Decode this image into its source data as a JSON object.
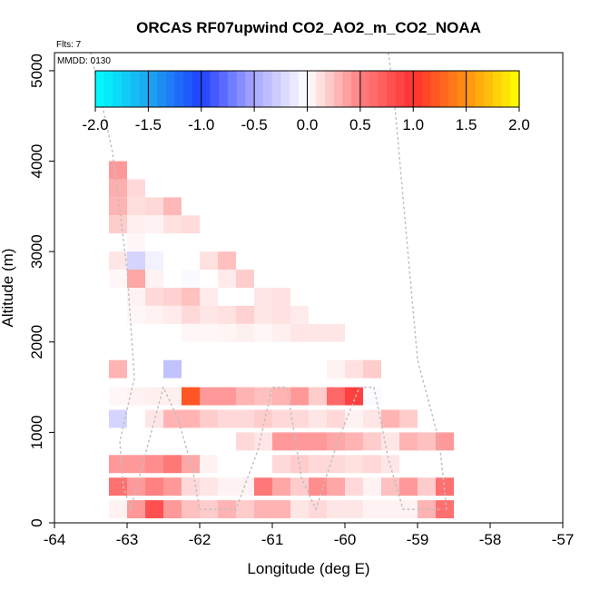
{
  "chart_data": {
    "type": "heatmap",
    "title": "ORCAS RF07upwind CO2_AO2_m_CO2_NOAA",
    "xlabel": "Longitude (deg E)",
    "ylabel": "Altitude (m)",
    "xlim": [
      -64,
      -57
    ],
    "ylim": [
      0,
      5200
    ],
    "xticks": [
      -64,
      -63,
      -62,
      -61,
      -60,
      -59,
      -58,
      -57
    ],
    "xtick_labels": [
      "-64",
      "-63",
      "-62",
      "-61",
      "-60",
      "-59",
      "-58",
      "-57"
    ],
    "yticks": [
      0,
      1000,
      2000,
      3000,
      4000,
      5000
    ],
    "ytick_labels": [
      "0",
      "1000",
      "2000",
      "3000",
      "4000",
      "5000"
    ],
    "annotations": {
      "flights": "Flts: 7",
      "mmdd": "MMDD: 0130"
    },
    "colorbar": {
      "range": [
        -2.0,
        2.0
      ],
      "ticks": [
        -2.0,
        -1.5,
        -1.0,
        -0.5,
        0.0,
        0.5,
        1.0,
        1.5,
        2.0
      ],
      "tick_labels": [
        "-2.0",
        "-1.5",
        "-1.0",
        "-0.5",
        "0.0",
        "0.5",
        "1.0",
        "1.5",
        "2.0"
      ],
      "color_stops": [
        {
          "v": -2.0,
          "c": "#00ffff"
        },
        {
          "v": -1.5,
          "c": "#1ca6f0"
        },
        {
          "v": -1.0,
          "c": "#2040ff"
        },
        {
          "v": -0.5,
          "c": "#a8a8ff"
        },
        {
          "v": 0.0,
          "c": "#ffffff"
        },
        {
          "v": 0.5,
          "c": "#ff8080"
        },
        {
          "v": 1.0,
          "c": "#ff3030"
        },
        {
          "v": 1.5,
          "c": "#ff9010"
        },
        {
          "v": 2.0,
          "c": "#ffff00"
        }
      ]
    },
    "bin_size": {
      "lon": 0.25,
      "alt": 200
    },
    "cells": [
      {
        "lon": -63.125,
        "alt": 3900,
        "v": 0.4
      },
      {
        "lon": -63.125,
        "alt": 3700,
        "v": 0.32
      },
      {
        "lon": -62.875,
        "alt": 3700,
        "v": 0.15
      },
      {
        "lon": -63.125,
        "alt": 3500,
        "v": 0.3
      },
      {
        "lon": -62.875,
        "alt": 3500,
        "v": 0.13
      },
      {
        "lon": -62.625,
        "alt": 3500,
        "v": 0.15
      },
      {
        "lon": -62.375,
        "alt": 3500,
        "v": 0.28
      },
      {
        "lon": -63.125,
        "alt": 3300,
        "v": 0.2
      },
      {
        "lon": -62.875,
        "alt": 3300,
        "v": 0.06
      },
      {
        "lon": -62.625,
        "alt": 3300,
        "v": 0.05
      },
      {
        "lon": -62.375,
        "alt": 3300,
        "v": 0.12
      },
      {
        "lon": -62.125,
        "alt": 3300,
        "v": 0.14
      },
      {
        "lon": -63.125,
        "alt": 3100,
        "v": 0.0
      },
      {
        "lon": -62.875,
        "alt": 3100,
        "v": 0.03
      },
      {
        "lon": -62.625,
        "alt": 3100,
        "v": 0.0
      },
      {
        "lon": -62.375,
        "alt": 3100,
        "v": 0.0
      },
      {
        "lon": -62.125,
        "alt": 3100,
        "v": 0.0
      },
      {
        "lon": -61.875,
        "alt": 3100,
        "v": 0.0
      },
      {
        "lon": -63.125,
        "alt": 2900,
        "v": 0.1
      },
      {
        "lon": -62.875,
        "alt": 2900,
        "v": -0.25
      },
      {
        "lon": -62.625,
        "alt": 2900,
        "v": -0.08
      },
      {
        "lon": -62.375,
        "alt": 2900,
        "v": 0.0
      },
      {
        "lon": -62.125,
        "alt": 2900,
        "v": 0.0
      },
      {
        "lon": -61.875,
        "alt": 2900,
        "v": 0.12
      },
      {
        "lon": -61.625,
        "alt": 2900,
        "v": 0.25
      },
      {
        "lon": -63.125,
        "alt": 2700,
        "v": 0.03
      },
      {
        "lon": -62.875,
        "alt": 2700,
        "v": 0.35
      },
      {
        "lon": -62.625,
        "alt": 2700,
        "v": 0.05
      },
      {
        "lon": -62.375,
        "alt": 2700,
        "v": 0.0
      },
      {
        "lon": -62.125,
        "alt": 2700,
        "v": -0.03
      },
      {
        "lon": -61.875,
        "alt": 2700,
        "v": 0.0
      },
      {
        "lon": -61.625,
        "alt": 2700,
        "v": 0.08
      },
      {
        "lon": -61.375,
        "alt": 2700,
        "v": 0.2
      },
      {
        "lon": -62.875,
        "alt": 2500,
        "v": 0.05
      },
      {
        "lon": -62.625,
        "alt": 2500,
        "v": 0.15
      },
      {
        "lon": -62.375,
        "alt": 2500,
        "v": 0.18
      },
      {
        "lon": -62.125,
        "alt": 2500,
        "v": 0.25
      },
      {
        "lon": -61.875,
        "alt": 2500,
        "v": 0.08
      },
      {
        "lon": -61.625,
        "alt": 2500,
        "v": 0.0
      },
      {
        "lon": -61.375,
        "alt": 2500,
        "v": 0.0
      },
      {
        "lon": -61.125,
        "alt": 2500,
        "v": 0.1
      },
      {
        "lon": -60.875,
        "alt": 2500,
        "v": 0.12
      },
      {
        "lon": -62.875,
        "alt": 2300,
        "v": 0.03
      },
      {
        "lon": -62.625,
        "alt": 2300,
        "v": 0.05
      },
      {
        "lon": -62.375,
        "alt": 2300,
        "v": 0.08
      },
      {
        "lon": -62.125,
        "alt": 2300,
        "v": 0.15
      },
      {
        "lon": -61.875,
        "alt": 2300,
        "v": 0.1
      },
      {
        "lon": -61.625,
        "alt": 2300,
        "v": 0.12
      },
      {
        "lon": -61.375,
        "alt": 2300,
        "v": 0.18
      },
      {
        "lon": -61.125,
        "alt": 2300,
        "v": 0.1
      },
      {
        "lon": -60.875,
        "alt": 2300,
        "v": 0.12
      },
      {
        "lon": -60.625,
        "alt": 2300,
        "v": 0.08
      },
      {
        "lon": -62.125,
        "alt": 2100,
        "v": 0.03
      },
      {
        "lon": -61.875,
        "alt": 2100,
        "v": 0.03
      },
      {
        "lon": -61.625,
        "alt": 2100,
        "v": 0.04
      },
      {
        "lon": -61.375,
        "alt": 2100,
        "v": 0.06
      },
      {
        "lon": -61.125,
        "alt": 2100,
        "v": 0.03
      },
      {
        "lon": -60.875,
        "alt": 2100,
        "v": 0.06
      },
      {
        "lon": -60.625,
        "alt": 2100,
        "v": 0.1
      },
      {
        "lon": -60.375,
        "alt": 2100,
        "v": 0.1
      },
      {
        "lon": -60.125,
        "alt": 2100,
        "v": 0.1
      },
      {
        "lon": -63.125,
        "alt": 1700,
        "v": 0.3
      },
      {
        "lon": -62.875,
        "alt": 1700,
        "v": 0.0
      },
      {
        "lon": -62.625,
        "alt": 1700,
        "v": 0.0
      },
      {
        "lon": -62.375,
        "alt": 1700,
        "v": -0.35
      },
      {
        "lon": -62.125,
        "alt": 1700,
        "v": 0.0
      },
      {
        "lon": -61.875,
        "alt": 1700,
        "v": 0.0
      },
      {
        "lon": -61.625,
        "alt": 1700,
        "v": 0.0
      },
      {
        "lon": -61.375,
        "alt": 1700,
        "v": 0.0
      },
      {
        "lon": -61.125,
        "alt": 1700,
        "v": 0.0
      },
      {
        "lon": -60.875,
        "alt": 1700,
        "v": 0.0
      },
      {
        "lon": -60.625,
        "alt": 1700,
        "v": 0.0
      },
      {
        "lon": -60.375,
        "alt": 1700,
        "v": 0.0
      },
      {
        "lon": -60.125,
        "alt": 1700,
        "v": 0.05
      },
      {
        "lon": -59.875,
        "alt": 1700,
        "v": 0.12
      },
      {
        "lon": -59.625,
        "alt": 1700,
        "v": 0.2
      },
      {
        "lon": -63.125,
        "alt": 1400,
        "v": 0.03
      },
      {
        "lon": -62.875,
        "alt": 1400,
        "v": 0.05
      },
      {
        "lon": -62.625,
        "alt": 1400,
        "v": 0.06
      },
      {
        "lon": -62.375,
        "alt": 1400,
        "v": 0.06
      },
      {
        "lon": -62.125,
        "alt": 1400,
        "v": 1.2
      },
      {
        "lon": -61.875,
        "alt": 1400,
        "v": 0.4
      },
      {
        "lon": -61.625,
        "alt": 1400,
        "v": 0.4
      },
      {
        "lon": -61.375,
        "alt": 1400,
        "v": 0.3
      },
      {
        "lon": -61.125,
        "alt": 1400,
        "v": 0.25
      },
      {
        "lon": -60.875,
        "alt": 1400,
        "v": 0.3
      },
      {
        "lon": -60.625,
        "alt": 1400,
        "v": 0.4
      },
      {
        "lon": -60.375,
        "alt": 1400,
        "v": 0.2
      },
      {
        "lon": -60.125,
        "alt": 1400,
        "v": 0.65
      },
      {
        "lon": -59.875,
        "alt": 1400,
        "v": 0.9
      },
      {
        "lon": -59.625,
        "alt": 1400,
        "v": -0.03
      },
      {
        "lon": -63.125,
        "alt": 1150,
        "v": -0.25
      },
      {
        "lon": -62.875,
        "alt": 1150,
        "v": 0.0
      },
      {
        "lon": -62.625,
        "alt": 1150,
        "v": 0.1
      },
      {
        "lon": -62.375,
        "alt": 1150,
        "v": 0.3
      },
      {
        "lon": -62.125,
        "alt": 1150,
        "v": 0.3
      },
      {
        "lon": -61.875,
        "alt": 1150,
        "v": 0.2
      },
      {
        "lon": -61.625,
        "alt": 1150,
        "v": 0.15
      },
      {
        "lon": -61.375,
        "alt": 1150,
        "v": 0.15
      },
      {
        "lon": -61.125,
        "alt": 1150,
        "v": 0.2
      },
      {
        "lon": -60.875,
        "alt": 1150,
        "v": 0.15
      },
      {
        "lon": -60.625,
        "alt": 1150,
        "v": 0.15
      },
      {
        "lon": -60.375,
        "alt": 1150,
        "v": 0.1
      },
      {
        "lon": -60.125,
        "alt": 1150,
        "v": 0.15
      },
      {
        "lon": -59.875,
        "alt": 1150,
        "v": 0.05
      },
      {
        "lon": -59.625,
        "alt": 1150,
        "v": 0.1
      },
      {
        "lon": -59.375,
        "alt": 1150,
        "v": 0.3
      },
      {
        "lon": -59.125,
        "alt": 1150,
        "v": 0.2
      },
      {
        "lon": -61.375,
        "alt": 900,
        "v": 0.15
      },
      {
        "lon": -61.125,
        "alt": 900,
        "v": 0.1
      },
      {
        "lon": -60.875,
        "alt": 900,
        "v": 0.4
      },
      {
        "lon": -60.625,
        "alt": 900,
        "v": 0.4
      },
      {
        "lon": -60.375,
        "alt": 900,
        "v": 0.4
      },
      {
        "lon": -60.125,
        "alt": 900,
        "v": 0.35
      },
      {
        "lon": -59.875,
        "alt": 900,
        "v": 0.3
      },
      {
        "lon": -59.625,
        "alt": 900,
        "v": 0.2
      },
      {
        "lon": -59.375,
        "alt": 900,
        "v": 0.1
      },
      {
        "lon": -59.125,
        "alt": 900,
        "v": 0.3
      },
      {
        "lon": -58.875,
        "alt": 900,
        "v": 0.25
      },
      {
        "lon": -58.625,
        "alt": 900,
        "v": 0.4
      },
      {
        "lon": -63.125,
        "alt": 650,
        "v": 0.4
      },
      {
        "lon": -62.875,
        "alt": 650,
        "v": 0.4
      },
      {
        "lon": -62.625,
        "alt": 650,
        "v": 0.45
      },
      {
        "lon": -62.375,
        "alt": 650,
        "v": 0.55
      },
      {
        "lon": -62.125,
        "alt": 650,
        "v": 0.35
      },
      {
        "lon": -61.875,
        "alt": 650,
        "v": 0.05
      },
      {
        "lon": -61.625,
        "alt": 650,
        "v": 0.0
      },
      {
        "lon": -61.375,
        "alt": 650,
        "v": 0.0
      },
      {
        "lon": -61.125,
        "alt": 650,
        "v": 0.0
      },
      {
        "lon": -60.875,
        "alt": 650,
        "v": 0.15
      },
      {
        "lon": -60.625,
        "alt": 650,
        "v": 0.2
      },
      {
        "lon": -60.375,
        "alt": 650,
        "v": 0.15
      },
      {
        "lon": -60.125,
        "alt": 650,
        "v": 0.15
      },
      {
        "lon": -59.875,
        "alt": 650,
        "v": 0.12
      },
      {
        "lon": -59.625,
        "alt": 650,
        "v": 0.15
      },
      {
        "lon": -59.375,
        "alt": 650,
        "v": 0.1
      },
      {
        "lon": -63.125,
        "alt": 400,
        "v": 0.6
      },
      {
        "lon": -62.875,
        "alt": 400,
        "v": 0.4
      },
      {
        "lon": -62.625,
        "alt": 400,
        "v": 0.5
      },
      {
        "lon": -62.375,
        "alt": 400,
        "v": 0.4
      },
      {
        "lon": -62.125,
        "alt": 400,
        "v": 0.15
      },
      {
        "lon": -61.875,
        "alt": 400,
        "v": 0.1
      },
      {
        "lon": -61.625,
        "alt": 400,
        "v": 0.05
      },
      {
        "lon": -61.375,
        "alt": 400,
        "v": 0.05
      },
      {
        "lon": -61.125,
        "alt": 400,
        "v": 0.55
      },
      {
        "lon": -60.875,
        "alt": 400,
        "v": 0.35
      },
      {
        "lon": -60.625,
        "alt": 400,
        "v": 0.2
      },
      {
        "lon": -60.375,
        "alt": 400,
        "v": 0.45
      },
      {
        "lon": -60.125,
        "alt": 400,
        "v": 0.35
      },
      {
        "lon": -59.875,
        "alt": 400,
        "v": 0.15
      },
      {
        "lon": -59.625,
        "alt": 400,
        "v": 0.05
      },
      {
        "lon": -59.375,
        "alt": 400,
        "v": 0.25
      },
      {
        "lon": -59.125,
        "alt": 400,
        "v": 0.4
      },
      {
        "lon": -58.875,
        "alt": 400,
        "v": 0.2
      },
      {
        "lon": -58.625,
        "alt": 400,
        "v": 0.6
      },
      {
        "lon": -63.125,
        "alt": 150,
        "v": 0.05
      },
      {
        "lon": -62.875,
        "alt": 150,
        "v": 0.4
      },
      {
        "lon": -62.625,
        "alt": 150,
        "v": 0.8
      },
      {
        "lon": -62.375,
        "alt": 150,
        "v": 0.4
      },
      {
        "lon": -62.125,
        "alt": 150,
        "v": 0.25
      },
      {
        "lon": -61.875,
        "alt": 150,
        "v": 0.2
      },
      {
        "lon": -61.625,
        "alt": 150,
        "v": 0.3
      },
      {
        "lon": -61.375,
        "alt": 150,
        "v": 0.2
      },
      {
        "lon": -61.125,
        "alt": 150,
        "v": 0.3
      },
      {
        "lon": -60.875,
        "alt": 150,
        "v": 0.3
      },
      {
        "lon": -60.625,
        "alt": 150,
        "v": 0.1
      },
      {
        "lon": -60.375,
        "alt": 150,
        "v": 0.15
      },
      {
        "lon": -60.125,
        "alt": 150,
        "v": 0.1
      },
      {
        "lon": -59.875,
        "alt": 150,
        "v": 0.1
      },
      {
        "lon": -59.625,
        "alt": 150,
        "v": 0.05
      },
      {
        "lon": -59.375,
        "alt": 150,
        "v": 0.05
      },
      {
        "lon": -59.125,
        "alt": 150,
        "v": 0.05
      },
      {
        "lon": -58.875,
        "alt": 150,
        "v": 0.3
      },
      {
        "lon": -58.625,
        "alt": 150,
        "v": 0.6
      }
    ],
    "flight_tracks": [
      [
        [
          -63.5,
          5200
        ],
        [
          -63.2,
          4100
        ],
        [
          -63.0,
          2800
        ],
        [
          -62.9,
          1600
        ],
        [
          -63.1,
          900
        ],
        [
          -63.05,
          400
        ],
        [
          -62.95,
          150
        ]
      ],
      [
        [
          -62.95,
          150
        ],
        [
          -62.7,
          900
        ],
        [
          -62.5,
          1500
        ],
        [
          -62.3,
          1150
        ],
        [
          -62.1,
          600
        ],
        [
          -62.0,
          150
        ]
      ],
      [
        [
          -62.0,
          150
        ],
        [
          -61.5,
          150
        ],
        [
          -61.2,
          800
        ],
        [
          -61.0,
          1500
        ],
        [
          -60.8,
          1500
        ],
        [
          -60.6,
          500
        ],
        [
          -60.4,
          150
        ]
      ],
      [
        [
          -60.4,
          150
        ],
        [
          -60.1,
          900
        ],
        [
          -59.8,
          1500
        ],
        [
          -59.6,
          1500
        ],
        [
          -59.4,
          700
        ],
        [
          -59.2,
          150
        ],
        [
          -58.7,
          150
        ]
      ],
      [
        [
          -58.6,
          150
        ],
        [
          -58.7,
          900
        ],
        [
          -59.0,
          1800
        ],
        [
          -59.3,
          4500
        ],
        [
          -59.4,
          5200
        ]
      ]
    ]
  }
}
